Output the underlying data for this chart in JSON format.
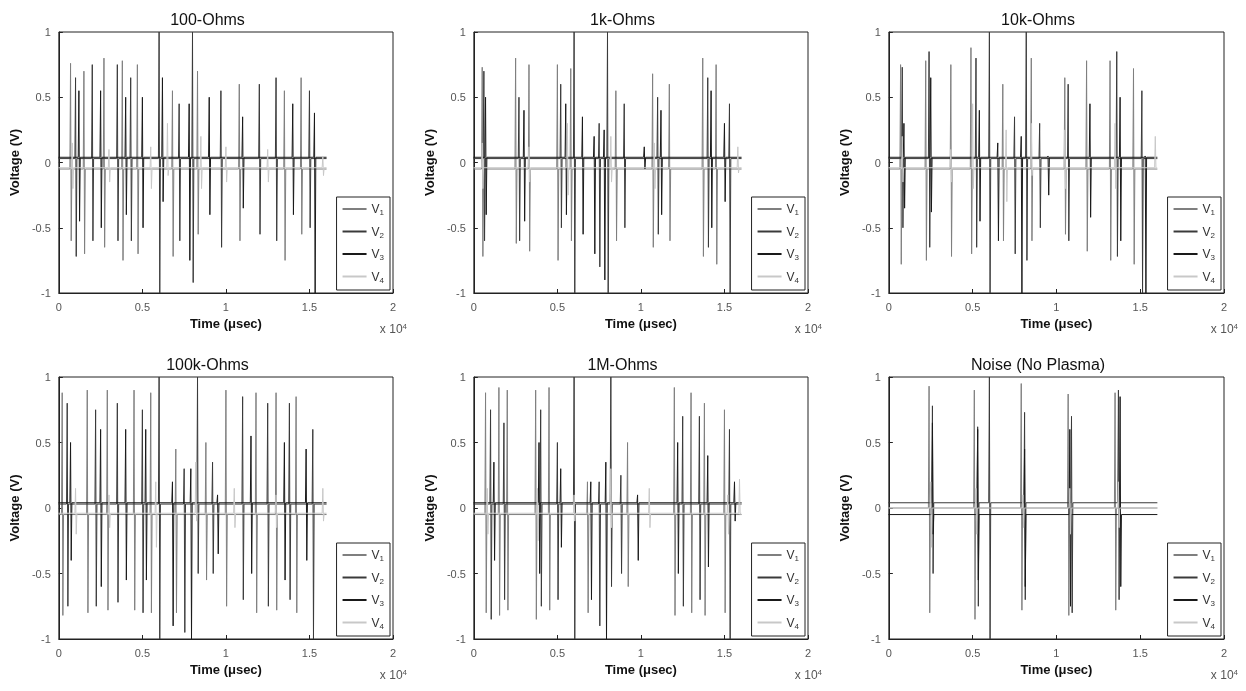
{
  "chart_data": [
    {
      "type": "line",
      "title": "100-Ohms",
      "xlabel": "Time (μsec)",
      "ylabel": "Voltage (V)",
      "xlim": [
        0,
        2
      ],
      "xticks": [
        0,
        0.5,
        1,
        1.5,
        2
      ],
      "ylim": [
        -1,
        1
      ],
      "yticks": [
        -1,
        -0.5,
        0,
        0.5,
        1
      ],
      "grid": false,
      "legend": "bottom right",
      "marker": "none",
      "annotations": [
        "x 10$^{4}$"
      ],
      "series": [
        {
          "name": "V$_{1}$",
          "color": "#7f7f7f",
          "x": [
            0,
            0.066,
            0.07,
            0.074,
            0.078,
            0.146,
            0.15,
            0.154,
            0.158,
            0.266,
            0.27,
            0.274,
            0.278,
            0.376,
            0.38,
            0.384,
            0.388,
            0.466,
            0.47,
            0.474,
            0.478,
            0.676,
            0.68,
            0.684,
            0.688,
            0.826,
            0.83,
            0.834,
            0.838,
            1.076,
            1.08,
            1.084,
            1.088,
            1.346,
            1.35,
            1.354,
            1.358,
            1.446,
            1.45,
            1.454,
            1.458,
            1.6
          ],
          "values": [
            -0.05,
            -0.05,
            0.76,
            -0.6,
            -0.05,
            -0.05,
            0.7,
            -0.7,
            -0.05,
            -0.05,
            0.8,
            -0.65,
            -0.05,
            -0.05,
            0.78,
            -0.75,
            -0.05,
            -0.05,
            0.75,
            -0.7,
            -0.05,
            -0.05,
            0.55,
            -0.72,
            -0.05,
            -0.05,
            0.7,
            -0.55,
            -0.05,
            -0.05,
            0.6,
            -0.6,
            -0.05,
            -0.05,
            0.55,
            -0.75,
            -0.05,
            -0.05,
            0.65,
            -0.55,
            -0.05,
            -0.05
          ]
        },
        {
          "name": "V$_{2}$",
          "color": "#3a3a3a",
          "x": [
            0,
            0.096,
            0.1,
            0.104,
            0.108,
            0.196,
            0.2,
            0.204,
            0.208,
            0.346,
            0.35,
            0.354,
            0.358,
            0.426,
            0.43,
            0.434,
            0.438,
            0.596,
            0.6,
            0.604,
            0.608,
            0.716,
            0.72,
            0.724,
            0.728,
            0.796,
            0.8,
            0.804,
            0.808,
            0.966,
            0.97,
            0.974,
            0.978,
            1.196,
            1.2,
            1.204,
            1.208,
            1.296,
            1.3,
            1.304,
            1.308,
            1.496,
            1.5,
            1.504,
            1.508,
            1.6
          ],
          "values": [
            0.03,
            0.03,
            0.65,
            -0.72,
            0.03,
            0.03,
            0.75,
            -0.6,
            0.03,
            0.03,
            0.75,
            -0.6,
            0.03,
            0.03,
            0.65,
            -0.6,
            0.03,
            0.03,
            1,
            -1,
            0.03,
            0.03,
            0.45,
            -0.6,
            0.03,
            0.03,
            1,
            -0.92,
            0.03,
            0.03,
            0.55,
            -0.65,
            0.03,
            0.03,
            0.6,
            -0.55,
            0.03,
            0.03,
            0.65,
            -0.6,
            0.03,
            0.03,
            0.55,
            -0.5,
            0.03,
            0.03
          ]
        },
        {
          "name": "V$_{3}$",
          "color": "#1a1a1a",
          "x": [
            0,
            0.116,
            0.12,
            0.124,
            0.128,
            0.246,
            0.25,
            0.254,
            0.258,
            0.396,
            0.4,
            0.404,
            0.408,
            0.496,
            0.5,
            0.504,
            0.508,
            0.616,
            0.62,
            0.624,
            0.628,
            0.776,
            0.78,
            0.784,
            0.788,
            0.896,
            0.9,
            0.904,
            0.908,
            1.096,
            1.1,
            1.104,
            1.108,
            1.396,
            1.4,
            1.404,
            1.408,
            1.526,
            1.53,
            1.534,
            1.538,
            1.6
          ],
          "values": [
            0.04,
            0.04,
            0.55,
            -0.45,
            0.04,
            0.04,
            0.55,
            -0.5,
            0.04,
            0.04,
            0.5,
            -0.4,
            0.04,
            0.04,
            0.5,
            -0.5,
            0.04,
            0.04,
            0.65,
            -0.3,
            0.04,
            0.04,
            0.45,
            -0.75,
            0.04,
            0.04,
            0.5,
            -0.4,
            0.04,
            0.04,
            0.35,
            -0.35,
            0.04,
            0.04,
            0.45,
            -0.4,
            0.04,
            0.04,
            0.38,
            -1,
            0.04,
            0.04
          ]
        },
        {
          "name": "V$_{4}$",
          "color": "#c8c8c8",
          "x": [
            0,
            0.076,
            0.08,
            0.084,
            0.088,
            0.296,
            0.3,
            0.304,
            0.308,
            0.546,
            0.55,
            0.554,
            0.558,
            0.646,
            0.65,
            0.654,
            0.658,
            0.846,
            0.85,
            0.854,
            0.858,
            0.996,
            1,
            1.004,
            1.008,
            1.246,
            1.25,
            1.254,
            1.258,
            1.576,
            1.58,
            1.584,
            1.588,
            1.6
          ],
          "values": [
            -0.04,
            -0.04,
            0.15,
            -0.2,
            -0.04,
            -0.04,
            0.1,
            -0.15,
            -0.04,
            -0.04,
            0.12,
            -0.2,
            -0.04,
            -0.04,
            0.3,
            -0.1,
            -0.04,
            -0.04,
            0.2,
            -0.2,
            -0.04,
            -0.04,
            0.12,
            -0.15,
            -0.04,
            -0.04,
            0.1,
            -0.15,
            -0.04,
            -0.04,
            0.05,
            -0.1,
            -0.04,
            -0.04
          ]
        }
      ]
    },
    {
      "type": "line",
      "title": "1k-Ohms",
      "xlabel": "Time (μsec)",
      "ylabel": "Voltage (V)",
      "xlim": [
        0,
        2
      ],
      "xticks": [
        0,
        0.5,
        1,
        1.5,
        2
      ],
      "ylim": [
        -1,
        1
      ],
      "yticks": [
        -1,
        -0.5,
        0,
        0.5,
        1
      ],
      "grid": false,
      "legend": "bottom right",
      "marker": "none",
      "annotations": [
        "x 10$^{4}$"
      ],
      "series": [
        {
          "name": "V$_{1}$",
          "color": "#7f7f7f",
          "x": [
            0,
            0.046,
            0.05,
            0.054,
            0.058,
            0.246,
            0.25,
            0.254,
            0.258,
            0.326,
            0.33,
            0.334,
            0.338,
            0.496,
            0.5,
            0.504,
            0.508,
            0.576,
            0.58,
            0.584,
            0.588,
            0.846,
            0.85,
            0.854,
            0.858,
            1.066,
            1.07,
            1.074,
            1.078,
            1.166,
            1.17,
            1.174,
            1.178,
            1.366,
            1.37,
            1.374,
            1.378,
            1.446,
            1.45,
            1.454,
            1.458,
            1.6
          ],
          "values": [
            -0.05,
            -0.05,
            0.73,
            -0.72,
            -0.05,
            -0.05,
            0.8,
            -0.62,
            -0.05,
            -0.05,
            0.75,
            -0.68,
            -0.05,
            -0.05,
            0.75,
            -0.75,
            -0.05,
            -0.05,
            0.72,
            -0.6,
            -0.05,
            -0.05,
            0.55,
            -0.6,
            -0.05,
            -0.05,
            0.68,
            -0.65,
            -0.05,
            -0.05,
            0.6,
            -0.6,
            -0.05,
            -0.05,
            0.8,
            -0.72,
            -0.05,
            -0.05,
            0.75,
            -0.78,
            -0.05,
            -0.05
          ]
        },
        {
          "name": "V$_{2}$",
          "color": "#3a3a3a",
          "x": [
            0,
            0.056,
            0.06,
            0.064,
            0.068,
            0.266,
            0.27,
            0.274,
            0.278,
            0.516,
            0.52,
            0.524,
            0.528,
            0.596,
            0.6,
            0.604,
            0.608,
            0.746,
            0.75,
            0.754,
            0.758,
            0.796,
            0.8,
            0.804,
            0.808,
            0.896,
            0.9,
            0.904,
            0.908,
            1.096,
            1.1,
            1.104,
            1.108,
            1.396,
            1.4,
            1.404,
            1.408,
            1.526,
            1.53,
            1.534,
            1.538,
            1.6
          ],
          "values": [
            0.03,
            0.03,
            0.7,
            -0.6,
            0.03,
            0.03,
            0.5,
            -0.6,
            0.03,
            0.03,
            0.6,
            -0.5,
            0.03,
            0.03,
            1,
            -1,
            0.03,
            0.03,
            0.3,
            -0.8,
            0.03,
            0.03,
            1,
            -1,
            0.03,
            0.03,
            0.45,
            -0.5,
            0.03,
            0.03,
            0.5,
            -0.55,
            0.03,
            0.03,
            0.65,
            -0.65,
            0.03,
            0.03,
            0.45,
            -1,
            0.03,
            0.03
          ]
        },
        {
          "name": "V$_{3}$",
          "color": "#1a1a1a",
          "x": [
            0,
            0.066,
            0.07,
            0.074,
            0.078,
            0.296,
            0.3,
            0.304,
            0.308,
            0.546,
            0.55,
            0.554,
            0.558,
            0.646,
            0.65,
            0.654,
            0.658,
            0.716,
            0.72,
            0.724,
            0.728,
            0.776,
            0.78,
            0.784,
            0.788,
            1.016,
            1.02,
            1.024,
            1.028,
            1.116,
            1.12,
            1.124,
            1.128,
            1.416,
            1.42,
            1.424,
            1.428,
            1.496,
            1.5,
            1.504,
            1.508,
            1.6
          ],
          "values": [
            0.04,
            0.04,
            0.5,
            -0.4,
            0.04,
            0.04,
            0.4,
            -0.45,
            0.04,
            0.04,
            0.45,
            -0.4,
            0.04,
            0.04,
            0.35,
            -0.55,
            0.04,
            0.04,
            0.2,
            -0.7,
            0.04,
            0.04,
            0.25,
            -0.9,
            0.04,
            0.04,
            0.12,
            -0.05,
            0.04,
            0.04,
            0.4,
            -0.4,
            0.04,
            0.04,
            0.55,
            -0.5,
            0.04,
            0.04,
            0.3,
            -0.3,
            0.04,
            0.04
          ]
        },
        {
          "name": "V$_{4}$",
          "color": "#c8c8c8",
          "x": [
            0,
            0.046,
            0.05,
            0.054,
            0.058,
            0.326,
            0.33,
            0.334,
            0.338,
            0.556,
            0.56,
            0.564,
            0.568,
            0.816,
            0.82,
            0.824,
            0.828,
            1.076,
            1.08,
            1.084,
            1.088,
            1.576,
            1.58,
            1.584,
            1.588,
            1.6
          ],
          "values": [
            -0.04,
            -0.04,
            0.15,
            -0.2,
            -0.04,
            -0.04,
            0.12,
            -0.15,
            -0.04,
            -0.04,
            0.3,
            -0.25,
            -0.04,
            -0.04,
            0.2,
            -0.15,
            -0.04,
            -0.04,
            0.15,
            -0.2,
            -0.04,
            -0.04,
            0.12,
            -0.08,
            -0.04,
            -0.04
          ]
        }
      ]
    },
    {
      "type": "line",
      "title": "10k-Ohms",
      "xlabel": "Time (μsec)",
      "ylabel": "Voltage (V)",
      "xlim": [
        0,
        2
      ],
      "xticks": [
        0,
        0.5,
        1,
        1.5,
        2
      ],
      "ylim": [
        -1,
        1
      ],
      "yticks": [
        -1,
        -0.5,
        0,
        0.5,
        1
      ],
      "grid": false,
      "legend": "bottom right",
      "marker": "none",
      "annotations": [
        "x 10$^{4}$"
      ],
      "series": [
        {
          "name": "V$_{1}$",
          "color": "#7f7f7f",
          "x": [
            0,
            0.066,
            0.07,
            0.074,
            0.078,
            0.216,
            0.22,
            0.224,
            0.228,
            0.366,
            0.37,
            0.374,
            0.378,
            0.486,
            0.49,
            0.494,
            0.498,
            0.676,
            0.68,
            0.684,
            0.688,
            0.846,
            0.85,
            0.854,
            0.858,
            1.046,
            1.05,
            1.054,
            1.058,
            1.176,
            1.18,
            1.184,
            1.188,
            1.316,
            1.32,
            1.324,
            1.328,
            1.456,
            1.46,
            1.464,
            1.468,
            1.6
          ],
          "values": [
            -0.05,
            -0.05,
            0.75,
            -0.78,
            -0.05,
            -0.05,
            0.78,
            -0.75,
            -0.05,
            -0.05,
            0.75,
            -0.72,
            -0.05,
            -0.05,
            0.88,
            -0.7,
            -0.05,
            -0.05,
            0.6,
            -0.6,
            -0.05,
            -0.05,
            0.8,
            -0.6,
            -0.05,
            -0.05,
            0.65,
            -0.55,
            -0.05,
            -0.05,
            0.78,
            -0.68,
            -0.05,
            -0.05,
            0.78,
            -0.75,
            -0.05,
            -0.05,
            0.72,
            -0.78,
            -0.05,
            -0.05
          ]
        },
        {
          "name": "V$_{2}$",
          "color": "#3a3a3a",
          "x": [
            0,
            0.076,
            0.08,
            0.084,
            0.088,
            0.236,
            0.24,
            0.244,
            0.248,
            0.516,
            0.52,
            0.524,
            0.528,
            0.596,
            0.6,
            0.604,
            0.608,
            0.746,
            0.75,
            0.754,
            0.758,
            0.816,
            0.82,
            0.824,
            0.828,
            0.896,
            0.9,
            0.904,
            0.908,
            1.066,
            1.07,
            1.074,
            1.078,
            1.356,
            1.36,
            1.364,
            1.368,
            1.506,
            1.51,
            1.514,
            1.518,
            1.6
          ],
          "values": [
            0.03,
            0.03,
            0.73,
            -0.5,
            0.03,
            0.03,
            0.85,
            -0.65,
            0.03,
            0.03,
            0.8,
            -0.65,
            0.03,
            0.03,
            1,
            -1,
            0.03,
            0.03,
            0.35,
            -0.7,
            0.03,
            0.03,
            1,
            -0.75,
            0.03,
            0.03,
            0.3,
            -0.5,
            0.03,
            0.03,
            0.6,
            -0.6,
            0.03,
            0.03,
            0.85,
            -0.72,
            0.03,
            0.03,
            0.55,
            -1,
            0.03,
            0.03
          ]
        },
        {
          "name": "V$_{3}$",
          "color": "#1a1a1a",
          "x": [
            0,
            0.086,
            0.09,
            0.094,
            0.098,
            0.246,
            0.25,
            0.254,
            0.258,
            0.536,
            0.54,
            0.544,
            0.548,
            0.646,
            0.65,
            0.654,
            0.658,
            0.786,
            0.79,
            0.794,
            0.798,
            0.946,
            0.95,
            0.954,
            0.958,
            1.196,
            1.2,
            1.204,
            1.208,
            1.376,
            1.38,
            1.384,
            1.388,
            1.526,
            1.53,
            1.534,
            1.538,
            1.6
          ],
          "values": [
            0.04,
            0.04,
            0.3,
            -0.35,
            0.04,
            0.04,
            0.65,
            -0.38,
            0.04,
            0.04,
            0.4,
            -0.45,
            0.04,
            0.04,
            0.15,
            -0.6,
            0.04,
            0.04,
            0.2,
            -1,
            0.04,
            0.04,
            0.05,
            -0.25,
            0.04,
            0.04,
            0.45,
            -0.42,
            0.04,
            0.04,
            0.5,
            -0.6,
            0.04,
            0.04,
            0.05,
            -1,
            0.04,
            0.04
          ]
        },
        {
          "name": "V$_{4}$",
          "color": "#c8c8c8",
          "x": [
            0,
            0.076,
            0.08,
            0.084,
            0.088,
            0.366,
            0.37,
            0.374,
            0.378,
            0.496,
            0.5,
            0.504,
            0.508,
            0.696,
            0.7,
            0.704,
            0.708,
            0.846,
            0.85,
            0.854,
            0.858,
            1.046,
            1.05,
            1.054,
            1.058,
            1.346,
            1.35,
            1.354,
            1.358,
            1.586,
            1.59,
            1.594,
            1.598,
            1.6
          ],
          "values": [
            -0.04,
            -0.04,
            0.2,
            -0.15,
            -0.04,
            -0.04,
            0.1,
            -0.15,
            -0.04,
            -0.04,
            0.45,
            -0.2,
            -0.04,
            -0.04,
            0.25,
            -0.3,
            -0.04,
            -0.04,
            0.3,
            -0.1,
            -0.04,
            -0.04,
            0.25,
            -0.2,
            -0.04,
            -0.04,
            0.3,
            -0.2,
            -0.04,
            -0.04,
            0.2,
            -0.05,
            -0.04,
            -0.04
          ]
        }
      ]
    },
    {
      "type": "line",
      "title": "100k-Ohms",
      "xlabel": "Time (μsec)",
      "ylabel": "Voltage (V)",
      "xlim": [
        0,
        2
      ],
      "xticks": [
        0,
        0.5,
        1,
        1.5,
        2
      ],
      "ylim": [
        -1,
        1
      ],
      "yticks": [
        -1,
        -0.5,
        0,
        0.5,
        1
      ],
      "grid": false,
      "legend": "bottom right",
      "marker": "none",
      "annotations": [
        "x 10$^{4}$"
      ],
      "series": [
        {
          "name": "V$_{1}$",
          "color": "#7f7f7f",
          "x": [
            0,
            0.016,
            0.02,
            0.024,
            0.028,
            0.166,
            0.17,
            0.174,
            0.178,
            0.286,
            0.29,
            0.294,
            0.298,
            0.446,
            0.45,
            0.454,
            0.458,
            0.546,
            0.55,
            0.554,
            0.558,
            0.696,
            0.7,
            0.704,
            0.708,
            0.876,
            0.88,
            0.884,
            0.888,
            0.996,
            1,
            1.004,
            1.008,
            1.176,
            1.18,
            1.184,
            1.188,
            1.296,
            1.3,
            1.304,
            1.308,
            1.416,
            1.42,
            1.424,
            1.428,
            1.6
          ],
          "values": [
            -0.05,
            -0.05,
            0.88,
            -0.82,
            -0.05,
            -0.05,
            0.9,
            -0.8,
            -0.05,
            -0.05,
            0.9,
            -0.78,
            -0.05,
            -0.05,
            0.9,
            -0.78,
            -0.05,
            -0.05,
            0.88,
            -0.8,
            -0.05,
            -0.05,
            0.45,
            -0.8,
            -0.05,
            -0.05,
            0.5,
            -0.55,
            -0.05,
            -0.05,
            0.9,
            -0.75,
            -0.05,
            -0.05,
            0.88,
            -0.8,
            -0.05,
            -0.05,
            0.88,
            -0.78,
            -0.05,
            -0.05,
            0.85,
            -0.8,
            -0.05,
            -0.05
          ]
        },
        {
          "name": "V$_{2}$",
          "color": "#3a3a3a",
          "x": [
            0,
            0.046,
            0.05,
            0.054,
            0.058,
            0.216,
            0.22,
            0.224,
            0.228,
            0.346,
            0.35,
            0.354,
            0.358,
            0.496,
            0.5,
            0.504,
            0.508,
            0.596,
            0.6,
            0.604,
            0.608,
            0.746,
            0.75,
            0.754,
            0.758,
            0.826,
            0.83,
            0.834,
            0.838,
            0.916,
            0.92,
            0.924,
            0.928,
            1.096,
            1.1,
            1.104,
            1.108,
            1.246,
            1.25,
            1.254,
            1.258,
            1.376,
            1.38,
            1.384,
            1.388,
            1.516,
            1.52,
            1.524,
            1.528,
            1.6
          ],
          "values": [
            0.03,
            0.03,
            0.8,
            -0.75,
            0.03,
            0.03,
            0.75,
            -0.75,
            0.03,
            0.03,
            0.8,
            -0.72,
            0.03,
            0.03,
            0.75,
            -0.8,
            0.03,
            0.03,
            1,
            -1,
            0.03,
            0.03,
            0.3,
            -0.95,
            0.03,
            0.03,
            1,
            -0.5,
            0.03,
            0.03,
            0.35,
            -0.5,
            0.03,
            0.03,
            0.85,
            -0.7,
            0.03,
            0.03,
            0.8,
            -0.75,
            0.03,
            0.03,
            0.8,
            -0.7,
            0.03,
            0.03,
            0.6,
            -1,
            0.03,
            0.03
          ]
        },
        {
          "name": "V$_{3}$",
          "color": "#1a1a1a",
          "x": [
            0,
            0.066,
            0.07,
            0.074,
            0.078,
            0.246,
            0.25,
            0.254,
            0.258,
            0.396,
            0.4,
            0.404,
            0.408,
            0.516,
            0.52,
            0.524,
            0.528,
            0.676,
            0.68,
            0.684,
            0.688,
            0.786,
            0.79,
            0.794,
            0.798,
            0.946,
            0.95,
            0.954,
            0.958,
            1.146,
            1.15,
            1.154,
            1.158,
            1.346,
            1.35,
            1.354,
            1.358,
            1.476,
            1.48,
            1.484,
            1.488,
            1.6
          ],
          "values": [
            0.04,
            0.04,
            0.5,
            -0.4,
            0.04,
            0.04,
            0.6,
            -0.6,
            0.04,
            0.04,
            0.6,
            -0.55,
            0.04,
            0.04,
            0.6,
            -0.55,
            0.04,
            0.04,
            0.2,
            -0.9,
            0.04,
            0.04,
            0.3,
            -1,
            0.04,
            0.04,
            0.1,
            -0.35,
            0.04,
            0.04,
            0.55,
            -0.5,
            0.04,
            0.04,
            0.5,
            -0.55,
            0.04,
            0.04,
            0.45,
            -0.4,
            0.04,
            0.04
          ]
        },
        {
          "name": "V$_{4}$",
          "color": "#c8c8c8",
          "x": [
            0,
            0.096,
            0.1,
            0.104,
            0.108,
            0.296,
            0.3,
            0.304,
            0.308,
            0.576,
            0.58,
            0.584,
            0.588,
            0.816,
            0.82,
            0.824,
            0.828,
            1.046,
            1.05,
            1.054,
            1.058,
            1.296,
            1.3,
            1.304,
            1.308,
            1.576,
            1.58,
            1.584,
            1.588,
            1.6
          ],
          "values": [
            -0.04,
            -0.04,
            0.15,
            -0.2,
            -0.04,
            -0.04,
            0.1,
            -0.15,
            -0.04,
            -0.04,
            0.2,
            -0.3,
            -0.04,
            -0.04,
            0.35,
            -0.1,
            -0.04,
            -0.04,
            0.15,
            -0.15,
            -0.04,
            -0.04,
            0.1,
            -0.15,
            -0.04,
            -0.04,
            0.15,
            -0.1,
            -0.04,
            -0.04
          ]
        }
      ]
    },
    {
      "type": "line",
      "title": "1M-Ohms",
      "xlabel": "Time (μsec)",
      "ylabel": "Voltage (V)",
      "xlim": [
        0,
        2
      ],
      "xticks": [
        0,
        0.5,
        1,
        1.5,
        2
      ],
      "ylim": [
        -1,
        1
      ],
      "yticks": [
        -1,
        -0.5,
        0,
        0.5,
        1
      ],
      "grid": false,
      "legend": "bottom right",
      "marker": "none",
      "annotations": [
        "x 10$^{4}$"
      ],
      "series": [
        {
          "name": "V$_{1}$",
          "color": "#7f7f7f",
          "x": [
            0,
            0.066,
            0.07,
            0.074,
            0.078,
            0.146,
            0.15,
            0.154,
            0.158,
            0.196,
            0.2,
            0.204,
            0.208,
            0.366,
            0.37,
            0.374,
            0.378,
            0.446,
            0.45,
            0.454,
            0.458,
            0.676,
            0.68,
            0.684,
            0.688,
            0.916,
            0.92,
            0.924,
            0.928,
            1.196,
            1.2,
            1.204,
            1.208,
            1.296,
            1.3,
            1.304,
            1.308,
            1.376,
            1.38,
            1.384,
            1.388,
            1.496,
            1.5,
            1.504,
            1.508,
            1.6
          ],
          "values": [
            -0.05,
            -0.05,
            0.88,
            -0.8,
            -0.05,
            -0.05,
            0.92,
            -0.82,
            -0.05,
            -0.05,
            0.9,
            -0.78,
            -0.05,
            -0.05,
            0.9,
            -0.85,
            -0.05,
            -0.05,
            0.92,
            -0.78,
            -0.05,
            -0.05,
            0.2,
            -0.8,
            -0.05,
            -0.05,
            0.5,
            -0.6,
            -0.05,
            -0.05,
            0.92,
            -0.82,
            -0.05,
            -0.05,
            0.88,
            -0.8,
            -0.05,
            -0.05,
            0.8,
            -0.82,
            -0.05,
            -0.05,
            0.75,
            -0.8,
            -0.05,
            -0.05
          ]
        },
        {
          "name": "V$_{2}$",
          "color": "#3a3a3a",
          "x": [
            0,
            0.096,
            0.1,
            0.104,
            0.108,
            0.176,
            0.18,
            0.184,
            0.188,
            0.396,
            0.4,
            0.404,
            0.408,
            0.496,
            0.5,
            0.504,
            0.508,
            0.596,
            0.6,
            0.604,
            0.608,
            0.746,
            0.75,
            0.754,
            0.758,
            0.816,
            0.82,
            0.824,
            0.828,
            0.876,
            0.88,
            0.884,
            0.888,
            1.246,
            1.25,
            1.254,
            1.258,
            1.346,
            1.35,
            1.354,
            1.358,
            1.526,
            1.53,
            1.534,
            1.538,
            1.6
          ],
          "values": [
            0.03,
            0.03,
            0.75,
            -0.85,
            0.03,
            0.03,
            0.65,
            -0.7,
            0.03,
            0.03,
            0.75,
            -0.75,
            0.03,
            0.03,
            0.5,
            -0.7,
            0.03,
            0.03,
            1,
            -1,
            0.03,
            0.03,
            0.2,
            -0.9,
            0.03,
            0.03,
            1,
            -0.6,
            0.03,
            0.03,
            0.25,
            -0.5,
            0.03,
            0.03,
            0.7,
            -0.75,
            0.03,
            0.03,
            0.7,
            -0.7,
            0.03,
            0.03,
            0.6,
            -1,
            0.03,
            0.03
          ]
        },
        {
          "name": "V$_{3}$",
          "color": "#1a1a1a",
          "x": [
            0,
            0.116,
            0.12,
            0.124,
            0.128,
            0.386,
            0.39,
            0.394,
            0.398,
            0.516,
            0.52,
            0.524,
            0.528,
            0.696,
            0.7,
            0.704,
            0.708,
            0.786,
            0.79,
            0.794,
            0.798,
            0.976,
            0.98,
            0.984,
            0.988,
            1.216,
            1.22,
            1.224,
            1.228,
            1.396,
            1.4,
            1.404,
            1.408,
            1.556,
            1.56,
            1.564,
            1.568,
            1.6
          ],
          "values": [
            0.04,
            0.04,
            0.35,
            -0.4,
            0.04,
            0.04,
            0.5,
            -0.5,
            0.04,
            0.04,
            0.3,
            -0.3,
            0.04,
            0.04,
            0.2,
            -0.7,
            0.04,
            0.04,
            0.35,
            -1,
            0.04,
            0.04,
            0.1,
            -0.4,
            0.04,
            0.04,
            0.5,
            -0.5,
            0.04,
            0.04,
            0.4,
            -0.45,
            0.04,
            0.04,
            0.2,
            -0.1,
            0.04,
            0.04
          ]
        },
        {
          "name": "V$_{4}$",
          "color": "#c8c8c8",
          "x": [
            0,
            0.076,
            0.08,
            0.084,
            0.088,
            0.376,
            0.38,
            0.384,
            0.388,
            0.596,
            0.6,
            0.604,
            0.608,
            0.816,
            0.82,
            0.824,
            0.828,
            1.046,
            1.05,
            1.054,
            1.058,
            1.516,
            1.52,
            1.524,
            1.528,
            1.586,
            1.59,
            1.594,
            1.598,
            1.6
          ],
          "values": [
            -0.04,
            -0.04,
            0.15,
            -0.2,
            -0.04,
            -0.04,
            0.15,
            -0.25,
            -0.04,
            -0.04,
            0.1,
            -0.1,
            -0.04,
            -0.04,
            0.3,
            -0.15,
            -0.04,
            -0.04,
            0.15,
            -0.15,
            -0.04,
            -0.04,
            0.1,
            -0.2,
            -0.04,
            -0.04,
            0.22,
            -0.05,
            -0.04,
            -0.04
          ]
        }
      ]
    },
    {
      "type": "line",
      "title": "Noise (No Plasma)",
      "xlabel": "Time (μsec)",
      "ylabel": "Voltage (V)",
      "xlim": [
        0,
        2
      ],
      "xticks": [
        0,
        0.5,
        1,
        1.5,
        2
      ],
      "ylim": [
        -1,
        1
      ],
      "yticks": [
        -1,
        -0.5,
        0,
        0.5,
        1
      ],
      "grid": false,
      "legend": "bottom right",
      "marker": "none",
      "annotations": [
        "x 10$^{4}$"
      ],
      "series": [
        {
          "name": "V$_{1}$",
          "color": "#7f7f7f",
          "x": [
            0,
            0.236,
            0.24,
            0.244,
            0.248,
            0.506,
            0.51,
            0.514,
            0.518,
            0.786,
            0.79,
            0.794,
            0.798,
            1.066,
            1.07,
            1.074,
            1.078,
            1.346,
            1.35,
            1.354,
            1.358,
            1.6
          ],
          "values": [
            0,
            0,
            0.93,
            -0.8,
            0,
            0,
            0.9,
            -0.85,
            0,
            0,
            0.95,
            -0.78,
            0,
            0,
            0.87,
            -0.82,
            0,
            0,
            0.88,
            -0.78,
            0,
            0
          ]
        },
        {
          "name": "V$_{2}$",
          "color": "#3a3a3a",
          "x": [
            0,
            0.256,
            0.26,
            0.264,
            0.268,
            0.526,
            0.53,
            0.534,
            0.538,
            0.596,
            0.6,
            0.604,
            0.608,
            0.806,
            0.81,
            0.814,
            0.818,
            1.086,
            1.09,
            1.094,
            1.098,
            1.366,
            1.37,
            1.374,
            1.378,
            1.6
          ],
          "values": [
            0.04,
            0.04,
            0.78,
            -0.5,
            0.04,
            0.04,
            0.62,
            -0.75,
            0.04,
            0.04,
            1,
            -1,
            0.04,
            0.04,
            0.73,
            -0.7,
            0.04,
            0.04,
            0.7,
            -0.8,
            0.04,
            0.04,
            0.9,
            -0.7,
            0.04,
            0.04
          ]
        },
        {
          "name": "V$_{3}$",
          "color": "#1a1a1a",
          "x": [
            0,
            0.256,
            0.26,
            0.264,
            0.268,
            0.526,
            0.53,
            0.534,
            0.538,
            0.806,
            0.81,
            0.814,
            0.818,
            1.076,
            1.08,
            1.084,
            1.088,
            1.376,
            1.38,
            1.384,
            1.388,
            1.6
          ],
          "values": [
            -0.05,
            -0.05,
            0.65,
            -0.2,
            -0.05,
            -0.05,
            0.6,
            -0.55,
            -0.05,
            -0.05,
            0.45,
            -0.6,
            -0.05,
            -0.05,
            0.6,
            -0.75,
            -0.05,
            -0.05,
            0.85,
            -0.6,
            -0.05,
            -0.05
          ]
        },
        {
          "name": "V$_{4}$",
          "color": "#c8c8c8",
          "x": [
            0,
            0.246,
            0.25,
            0.254,
            0.258,
            0.516,
            0.52,
            0.524,
            0.528,
            0.796,
            0.8,
            0.804,
            0.808,
            1.076,
            1.08,
            1.084,
            1.088,
            1.366,
            1.37,
            1.374,
            1.378,
            1.6
          ],
          "values": [
            0,
            0,
            0.2,
            -0.3,
            0,
            0,
            0.15,
            -0.2,
            0,
            0,
            0.1,
            -0.15,
            0,
            0,
            0.15,
            -0.2,
            0,
            0,
            0.2,
            -0.15,
            0,
            0
          ]
        }
      ]
    }
  ]
}
